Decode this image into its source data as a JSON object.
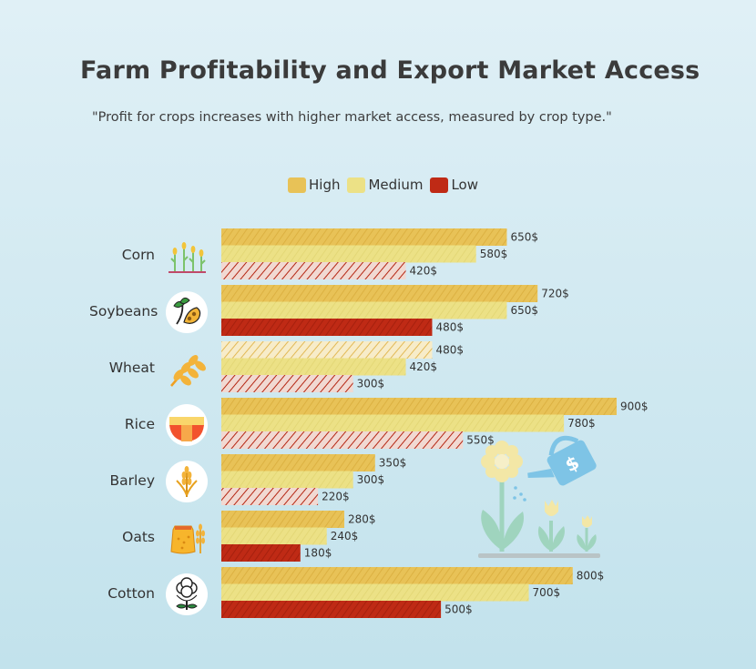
{
  "title": "Farm Profitability and Export Market Access",
  "subtitle": "\"Profit for crops increases with higher market access, measured by crop type.\"",
  "legend": [
    {
      "key": "high",
      "label": "High",
      "color": "#e8c257"
    },
    {
      "key": "medium",
      "label": "Medium",
      "color": "#ece186"
    },
    {
      "key": "low",
      "label": "Low",
      "color": "#bf2a15"
    }
  ],
  "value_suffix": "$",
  "icons": [
    "corn-icon",
    "soybeans-icon",
    "wheat-icon",
    "rice-icon",
    "barley-icon",
    "oats-icon",
    "cotton-icon",
    "watering-can-flowers-illustration"
  ],
  "chart_data": {
    "type": "bar",
    "orientation": "horizontal",
    "title": "Farm Profitability and Export Market Access",
    "subtitle": "\"Profit for crops increases with higher market access, measured by crop type.\"",
    "categories": [
      "Corn",
      "Soybeans",
      "Wheat",
      "Rice",
      "Barley",
      "Oats",
      "Cotton"
    ],
    "series": [
      {
        "name": "High",
        "values": [
          650,
          720,
          480,
          900,
          350,
          280,
          800
        ]
      },
      {
        "name": "Medium",
        "values": [
          580,
          650,
          420,
          780,
          300,
          240,
          700
        ]
      },
      {
        "name": "Low",
        "values": [
          420,
          480,
          300,
          550,
          220,
          180,
          500
        ]
      }
    ],
    "xlim": [
      0,
      900
    ],
    "grid": false,
    "legend_position": "top-center"
  }
}
